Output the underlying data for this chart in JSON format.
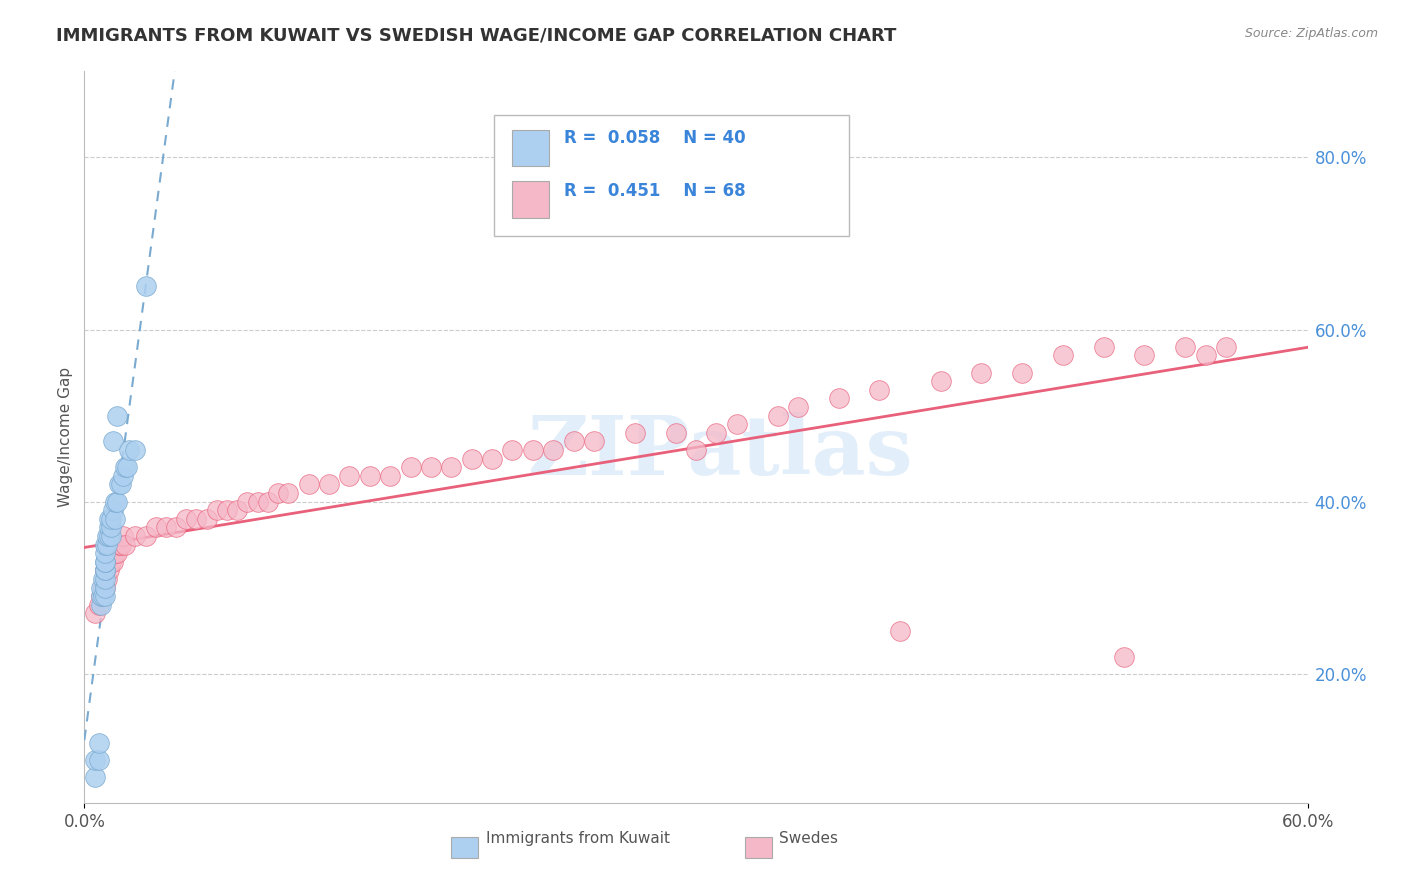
{
  "title": "IMMIGRANTS FROM KUWAIT VS SWEDISH WAGE/INCOME GAP CORRELATION CHART",
  "source_text": "Source: ZipAtlas.com",
  "ylabel": "Wage/Income Gap",
  "xlim": [
    0.0,
    0.6
  ],
  "ylim": [
    0.05,
    0.9
  ],
  "y_ticks": [
    0.2,
    0.4,
    0.6,
    0.8
  ],
  "y_tick_labels": [
    "20.0%",
    "40.0%",
    "60.0%",
    "80.0%"
  ],
  "color_blue": "#aed0f0",
  "color_pink": "#f5b8c8",
  "color_blue_trend": "#7aaad0",
  "color_pink_trend": "#e8607a",
  "watermark": "ZIPatlas",
  "background_color": "#ffffff",
  "blue_x": [
    0.005,
    0.005,
    0.007,
    0.007,
    0.008,
    0.008,
    0.008,
    0.009,
    0.009,
    0.01,
    0.01,
    0.01,
    0.01,
    0.01,
    0.01,
    0.01,
    0.01,
    0.01,
    0.011,
    0.011,
    0.012,
    0.012,
    0.012,
    0.013,
    0.013,
    0.013,
    0.014,
    0.014,
    0.015,
    0.015,
    0.016,
    0.016,
    0.017,
    0.018,
    0.019,
    0.02,
    0.021,
    0.022,
    0.025,
    0.03
  ],
  "blue_y": [
    0.08,
    0.1,
    0.1,
    0.12,
    0.28,
    0.29,
    0.3,
    0.29,
    0.31,
    0.29,
    0.3,
    0.31,
    0.32,
    0.32,
    0.33,
    0.33,
    0.34,
    0.35,
    0.35,
    0.36,
    0.36,
    0.37,
    0.38,
    0.36,
    0.37,
    0.38,
    0.39,
    0.47,
    0.38,
    0.4,
    0.4,
    0.5,
    0.42,
    0.42,
    0.43,
    0.44,
    0.44,
    0.46,
    0.46,
    0.65
  ],
  "pink_x": [
    0.005,
    0.007,
    0.008,
    0.009,
    0.01,
    0.01,
    0.011,
    0.012,
    0.012,
    0.013,
    0.014,
    0.015,
    0.016,
    0.017,
    0.018,
    0.019,
    0.02,
    0.025,
    0.03,
    0.035,
    0.04,
    0.045,
    0.05,
    0.055,
    0.06,
    0.065,
    0.07,
    0.075,
    0.08,
    0.085,
    0.09,
    0.095,
    0.1,
    0.11,
    0.12,
    0.13,
    0.14,
    0.15,
    0.16,
    0.17,
    0.18,
    0.19,
    0.2,
    0.21,
    0.22,
    0.23,
    0.24,
    0.25,
    0.27,
    0.29,
    0.3,
    0.31,
    0.32,
    0.34,
    0.35,
    0.37,
    0.39,
    0.4,
    0.42,
    0.44,
    0.46,
    0.48,
    0.5,
    0.51,
    0.52,
    0.54,
    0.55,
    0.56
  ],
  "pink_y": [
    0.27,
    0.28,
    0.29,
    0.3,
    0.3,
    0.32,
    0.31,
    0.32,
    0.34,
    0.33,
    0.33,
    0.34,
    0.34,
    0.35,
    0.35,
    0.36,
    0.35,
    0.36,
    0.36,
    0.37,
    0.37,
    0.37,
    0.38,
    0.38,
    0.38,
    0.39,
    0.39,
    0.39,
    0.4,
    0.4,
    0.4,
    0.41,
    0.41,
    0.42,
    0.42,
    0.43,
    0.43,
    0.43,
    0.44,
    0.44,
    0.44,
    0.45,
    0.45,
    0.46,
    0.46,
    0.46,
    0.47,
    0.47,
    0.48,
    0.48,
    0.46,
    0.48,
    0.49,
    0.5,
    0.51,
    0.52,
    0.53,
    0.25,
    0.54,
    0.55,
    0.55,
    0.57,
    0.58,
    0.22,
    0.57,
    0.58,
    0.57,
    0.58
  ]
}
